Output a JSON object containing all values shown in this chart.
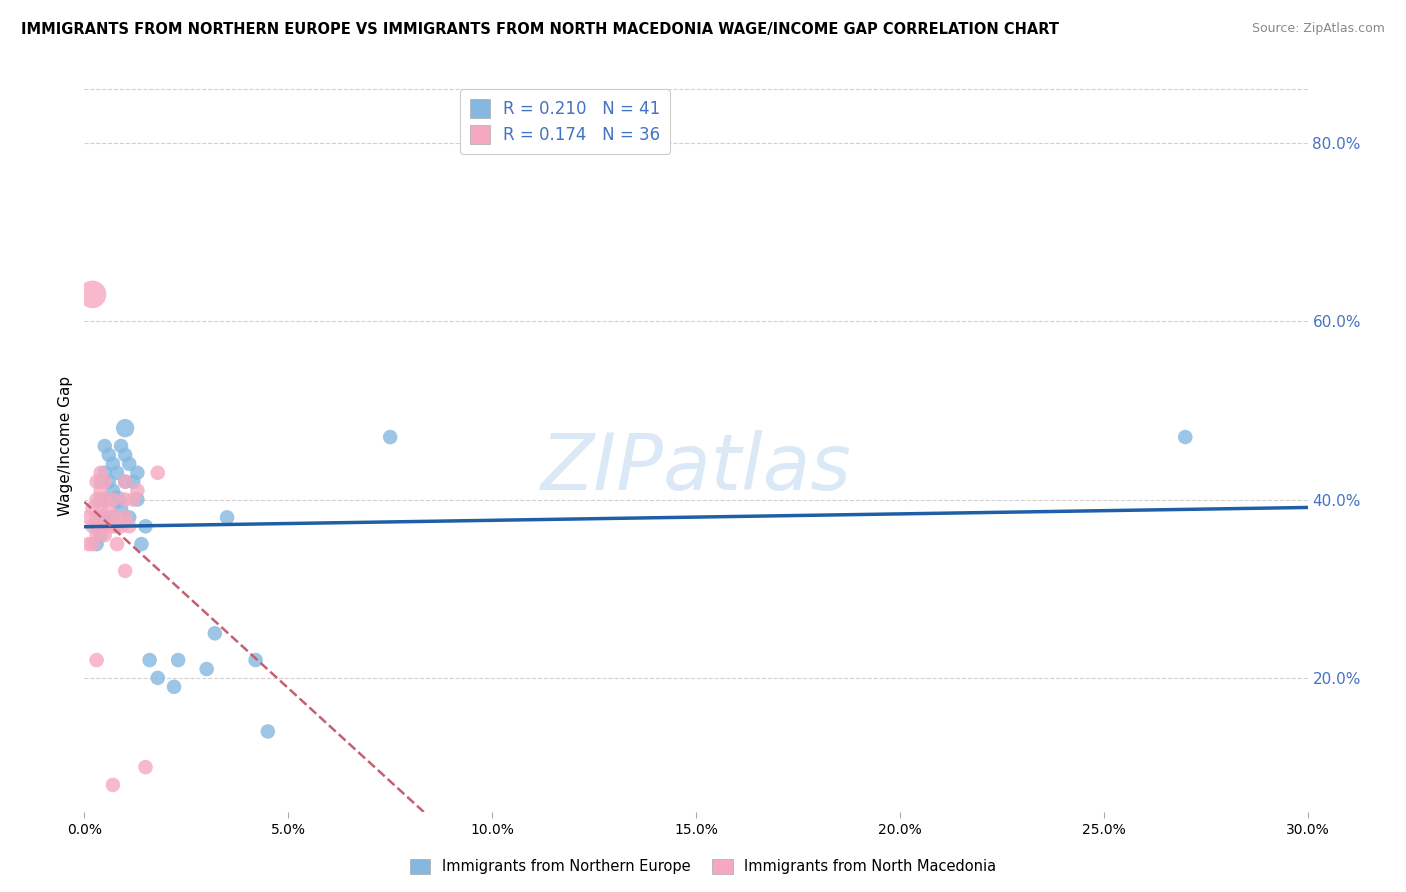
{
  "title": "IMMIGRANTS FROM NORTHERN EUROPE VS IMMIGRANTS FROM NORTH MACEDONIA WAGE/INCOME GAP CORRELATION CHART",
  "source": "Source: ZipAtlas.com",
  "ylabel": "Wage/Income Gap",
  "xlim": [
    0.0,
    0.3
  ],
  "ylim": [
    0.05,
    0.87
  ],
  "xlabel_vals": [
    0.0,
    0.05,
    0.1,
    0.15,
    0.2,
    0.25,
    0.3
  ],
  "ylabel_vals": [
    0.2,
    0.4,
    0.6,
    0.8
  ],
  "blue_R": 0.21,
  "blue_N": 41,
  "pink_R": 0.174,
  "pink_N": 36,
  "blue_color": "#85b8e0",
  "pink_color": "#f5a8bf",
  "blue_line_color": "#1f5fa6",
  "pink_line_color": "#c46070",
  "accent_color": "#4472c4",
  "watermark": "ZIPatlas",
  "legend_label_blue": "Immigrants from Northern Europe",
  "legend_label_pink": "Immigrants from North Macedonia",
  "blue_x": [
    0.003,
    0.003,
    0.004,
    0.004,
    0.004,
    0.004,
    0.005,
    0.005,
    0.005,
    0.005,
    0.006,
    0.006,
    0.007,
    0.007,
    0.007,
    0.008,
    0.008,
    0.008,
    0.009,
    0.009,
    0.01,
    0.01,
    0.01,
    0.011,
    0.011,
    0.012,
    0.013,
    0.013,
    0.014,
    0.015,
    0.016,
    0.018,
    0.022,
    0.023,
    0.03,
    0.032,
    0.035,
    0.042,
    0.045,
    0.075,
    0.27
  ],
  "blue_y": [
    0.35,
    0.37,
    0.36,
    0.38,
    0.4,
    0.42,
    0.38,
    0.4,
    0.43,
    0.46,
    0.42,
    0.45,
    0.38,
    0.41,
    0.44,
    0.37,
    0.4,
    0.43,
    0.39,
    0.46,
    0.42,
    0.45,
    0.48,
    0.38,
    0.44,
    0.42,
    0.4,
    0.43,
    0.35,
    0.37,
    0.22,
    0.2,
    0.19,
    0.22,
    0.21,
    0.25,
    0.38,
    0.22,
    0.14,
    0.47,
    0.47
  ],
  "pink_x": [
    0.001,
    0.001,
    0.002,
    0.002,
    0.002,
    0.003,
    0.003,
    0.003,
    0.003,
    0.004,
    0.004,
    0.004,
    0.004,
    0.005,
    0.005,
    0.005,
    0.005,
    0.006,
    0.006,
    0.007,
    0.007,
    0.008,
    0.008,
    0.009,
    0.01,
    0.01,
    0.01,
    0.011,
    0.012,
    0.013,
    0.002,
    0.003,
    0.007,
    0.01,
    0.015,
    0.018
  ],
  "pink_y": [
    0.35,
    0.38,
    0.35,
    0.37,
    0.39,
    0.36,
    0.38,
    0.4,
    0.42,
    0.37,
    0.39,
    0.41,
    0.43,
    0.36,
    0.38,
    0.4,
    0.42,
    0.37,
    0.39,
    0.37,
    0.4,
    0.35,
    0.38,
    0.37,
    0.38,
    0.4,
    0.42,
    0.37,
    0.4,
    0.41,
    0.63,
    0.22,
    0.08,
    0.32,
    0.1,
    0.43
  ],
  "blue_dot_sizes": [
    50,
    50,
    50,
    50,
    50,
    50,
    50,
    50,
    50,
    50,
    50,
    50,
    50,
    50,
    50,
    50,
    80,
    50,
    50,
    50,
    50,
    50,
    80,
    50,
    50,
    50,
    50,
    50,
    50,
    50,
    50,
    50,
    50,
    50,
    50,
    50,
    50,
    50,
    50,
    50,
    50
  ],
  "pink_dot_sizes": [
    50,
    50,
    50,
    50,
    50,
    50,
    50,
    50,
    50,
    50,
    50,
    50,
    50,
    50,
    50,
    50,
    50,
    50,
    50,
    50,
    50,
    50,
    50,
    50,
    50,
    50,
    50,
    50,
    50,
    50,
    180,
    50,
    50,
    50,
    50,
    50
  ]
}
